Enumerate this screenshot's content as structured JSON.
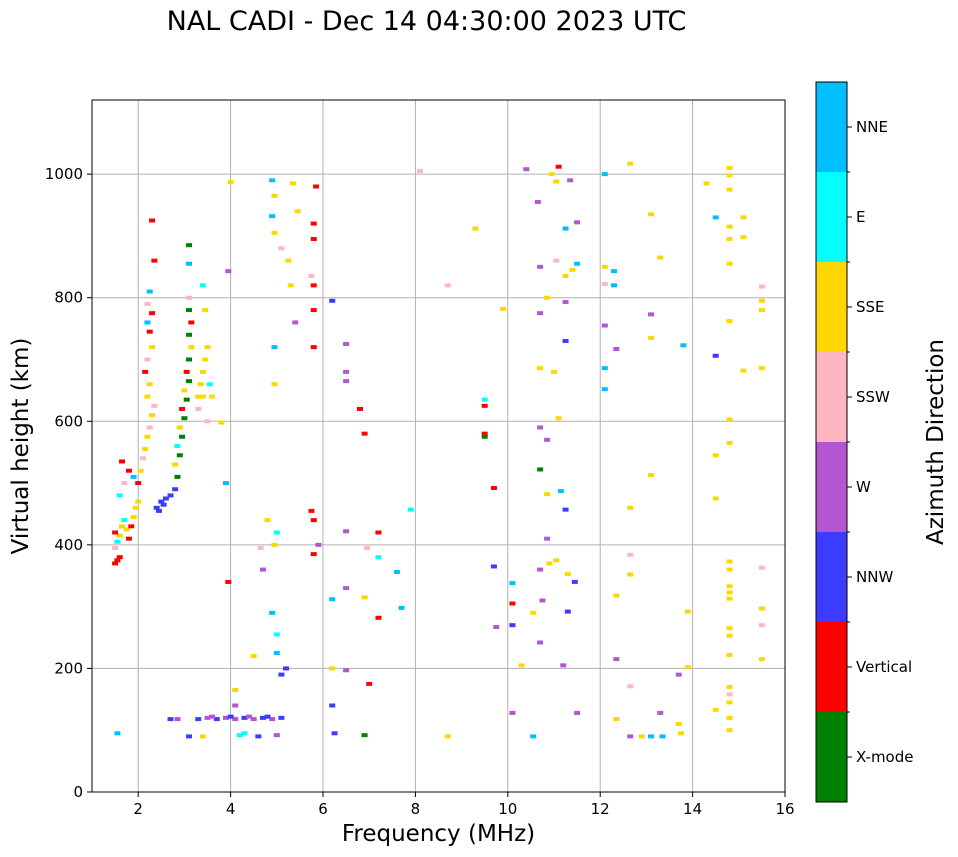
{
  "chart_data": {
    "type": "scatter",
    "title": "NAL CADI - Dec 14 04:30:00 2023 UTC",
    "xlabel": "Frequency (MHz)",
    "ylabel": "Virtual height (km)",
    "xlim": [
      1,
      16
    ],
    "ylim": [
      0,
      1120
    ],
    "xticks": [
      2,
      4,
      6,
      8,
      10,
      12,
      14,
      16
    ],
    "yticks": [
      0,
      200,
      400,
      600,
      800,
      1000
    ],
    "grid": true,
    "colorbar": {
      "label": "Azimuth Direction",
      "categories": [
        {
          "name": "X-mode",
          "color": "#008000"
        },
        {
          "name": "Vertical",
          "color": "#ff0000"
        },
        {
          "name": "NNW",
          "color": "#3c3cff"
        },
        {
          "name": "W",
          "color": "#b455d2"
        },
        {
          "name": "SSW",
          "color": "#ffb6c1"
        },
        {
          "name": "SSE",
          "color": "#ffd700"
        },
        {
          "name": "E",
          "color": "#00ffff"
        },
        {
          "name": "NNE",
          "color": "#00bfff"
        }
      ]
    },
    "points": [
      [
        1.5,
        370,
        "Vertical"
      ],
      [
        1.55,
        375,
        "Vertical"
      ],
      [
        1.6,
        380,
        "Vertical"
      ],
      [
        1.5,
        395,
        "SSW"
      ],
      [
        1.55,
        405,
        "E"
      ],
      [
        1.6,
        415,
        "SSE"
      ],
      [
        1.5,
        420,
        "Vertical"
      ],
      [
        1.65,
        430,
        "SSE"
      ],
      [
        1.7,
        440,
        "E"
      ],
      [
        1.75,
        425,
        "SSE"
      ],
      [
        1.8,
        410,
        "Vertical"
      ],
      [
        1.85,
        430,
        "Vertical"
      ],
      [
        1.9,
        445,
        "SSE"
      ],
      [
        1.95,
        460,
        "SSE"
      ],
      [
        2.0,
        470,
        "SSE"
      ],
      [
        1.6,
        480,
        "E"
      ],
      [
        1.7,
        500,
        "SSW"
      ],
      [
        1.8,
        520,
        "Vertical"
      ],
      [
        1.65,
        535,
        "Vertical"
      ],
      [
        1.9,
        510,
        "NNE"
      ],
      [
        2.0,
        500,
        "Vertical"
      ],
      [
        2.05,
        520,
        "SSE"
      ],
      [
        2.1,
        540,
        "SSW"
      ],
      [
        2.15,
        555,
        "SSE"
      ],
      [
        2.2,
        575,
        "SSE"
      ],
      [
        2.25,
        590,
        "SSW"
      ],
      [
        2.3,
        610,
        "SSE"
      ],
      [
        2.35,
        625,
        "SSW"
      ],
      [
        2.2,
        640,
        "SSE"
      ],
      [
        2.25,
        660,
        "SSE"
      ],
      [
        2.15,
        680,
        "Vertical"
      ],
      [
        2.2,
        700,
        "SSW"
      ],
      [
        2.3,
        720,
        "SSE"
      ],
      [
        2.25,
        745,
        "Vertical"
      ],
      [
        2.2,
        760,
        "NNE"
      ],
      [
        2.3,
        775,
        "Vertical"
      ],
      [
        2.2,
        790,
        "SSW"
      ],
      [
        2.25,
        810,
        "NNE"
      ],
      [
        2.35,
        860,
        "Vertical"
      ],
      [
        2.3,
        925,
        "Vertical"
      ],
      [
        2.4,
        460,
        "NNW"
      ],
      [
        2.5,
        470,
        "NNW"
      ],
      [
        2.6,
        475,
        "NNW"
      ],
      [
        2.7,
        480,
        "NNW"
      ],
      [
        2.45,
        455,
        "NNW"
      ],
      [
        2.55,
        465,
        "NNW"
      ],
      [
        2.8,
        490,
        "NNW"
      ],
      [
        2.85,
        510,
        "X-mode"
      ],
      [
        2.8,
        530,
        "SSE"
      ],
      [
        2.9,
        545,
        "X-mode"
      ],
      [
        2.85,
        560,
        "E"
      ],
      [
        2.95,
        575,
        "X-mode"
      ],
      [
        2.9,
        590,
        "SSE"
      ],
      [
        3.0,
        605,
        "X-mode"
      ],
      [
        2.95,
        620,
        "Vertical"
      ],
      [
        3.05,
        635,
        "X-mode"
      ],
      [
        3.0,
        650,
        "SSE"
      ],
      [
        3.1,
        665,
        "X-mode"
      ],
      [
        3.05,
        680,
        "Vertical"
      ],
      [
        3.1,
        700,
        "X-mode"
      ],
      [
        3.15,
        720,
        "SSE"
      ],
      [
        3.1,
        740,
        "X-mode"
      ],
      [
        3.15,
        760,
        "Vertical"
      ],
      [
        3.1,
        780,
        "X-mode"
      ],
      [
        3.1,
        800,
        "SSW"
      ],
      [
        3.1,
        855,
        "NNE"
      ],
      [
        3.1,
        885,
        "X-mode"
      ],
      [
        3.3,
        640,
        "SSE"
      ],
      [
        3.35,
        660,
        "SSE"
      ],
      [
        3.4,
        680,
        "SSE"
      ],
      [
        3.45,
        700,
        "SSE"
      ],
      [
        3.5,
        720,
        "SSE"
      ],
      [
        3.3,
        620,
        "SSW"
      ],
      [
        3.4,
        640,
        "SSE"
      ],
      [
        3.5,
        600,
        "SSW"
      ],
      [
        3.55,
        660,
        "E"
      ],
      [
        3.6,
        640,
        "SSE"
      ],
      [
        3.45,
        780,
        "SSE"
      ],
      [
        3.4,
        820,
        "E"
      ],
      [
        3.8,
        598,
        "SSE"
      ],
      [
        3.9,
        500,
        "NNE"
      ],
      [
        3.95,
        340,
        "Vertical"
      ],
      [
        4.0,
        987,
        "SSE"
      ],
      [
        3.95,
        843,
        "W"
      ],
      [
        3.3,
        118,
        "NNW"
      ],
      [
        3.5,
        120,
        "W"
      ],
      [
        3.7,
        118,
        "NNW"
      ],
      [
        3.9,
        120,
        "W"
      ],
      [
        4.1,
        118,
        "W"
      ],
      [
        4.3,
        120,
        "NNW"
      ],
      [
        4.5,
        118,
        "W"
      ],
      [
        4.7,
        120,
        "NNW"
      ],
      [
        4.9,
        118,
        "W"
      ],
      [
        5.1,
        120,
        "NNW"
      ],
      [
        3.6,
        122,
        "W"
      ],
      [
        4.0,
        122,
        "NNW"
      ],
      [
        4.4,
        122,
        "W"
      ],
      [
        4.8,
        122,
        "NNW"
      ],
      [
        2.7,
        118,
        "NNW"
      ],
      [
        2.85,
        118,
        "W"
      ],
      [
        4.2,
        92,
        "E"
      ],
      [
        4.3,
        95,
        "E"
      ],
      [
        4.6,
        90,
        "NNW"
      ],
      [
        5.0,
        92,
        "W"
      ],
      [
        3.1,
        90,
        "NNW"
      ],
      [
        3.4,
        90,
        "SSE"
      ],
      [
        1.55,
        95,
        "NNE"
      ],
      [
        4.1,
        165,
        "SSE"
      ],
      [
        4.1,
        140,
        "W"
      ],
      [
        4.5,
        220,
        "SSE"
      ],
      [
        4.65,
        395,
        "SSW"
      ],
      [
        4.7,
        360,
        "W"
      ],
      [
        4.8,
        440,
        "SSE"
      ],
      [
        4.9,
        990,
        "NNE"
      ],
      [
        4.95,
        965,
        "SSE"
      ],
      [
        4.9,
        932,
        "NNE"
      ],
      [
        4.95,
        905,
        "SSE"
      ],
      [
        5.1,
        880,
        "SSW"
      ],
      [
        4.95,
        720,
        "NNE"
      ],
      [
        4.95,
        660,
        "SSE"
      ],
      [
        5.0,
        420,
        "E"
      ],
      [
        4.95,
        400,
        "SSE"
      ],
      [
        4.9,
        290,
        "NNE"
      ],
      [
        5.0,
        255,
        "E"
      ],
      [
        5.0,
        225,
        "NNE"
      ],
      [
        5.2,
        200,
        "NNW"
      ],
      [
        5.1,
        190,
        "NNW"
      ],
      [
        5.25,
        860,
        "SSE"
      ],
      [
        5.3,
        820,
        "SSE"
      ],
      [
        5.4,
        760,
        "W"
      ],
      [
        5.35,
        985,
        "SSE"
      ],
      [
        5.45,
        940,
        "SSE"
      ],
      [
        5.85,
        980,
        "Vertical"
      ],
      [
        5.8,
        920,
        "Vertical"
      ],
      [
        5.8,
        895,
        "Vertical"
      ],
      [
        5.75,
        835,
        "SSW"
      ],
      [
        5.8,
        820,
        "Vertical"
      ],
      [
        5.8,
        780,
        "Vertical"
      ],
      [
        5.8,
        720,
        "Vertical"
      ],
      [
        5.75,
        455,
        "Vertical"
      ],
      [
        5.8,
        440,
        "Vertical"
      ],
      [
        5.8,
        385,
        "Vertical"
      ],
      [
        5.9,
        400,
        "W"
      ],
      [
        6.2,
        795,
        "NNW"
      ],
      [
        6.2,
        312,
        "NNE"
      ],
      [
        6.2,
        140,
        "NNW"
      ],
      [
        6.2,
        200,
        "SSE"
      ],
      [
        6.25,
        95,
        "NNW"
      ],
      [
        6.5,
        725,
        "W"
      ],
      [
        6.5,
        680,
        "W"
      ],
      [
        6.5,
        665,
        "W"
      ],
      [
        6.5,
        422,
        "W"
      ],
      [
        6.5,
        330,
        "W"
      ],
      [
        6.5,
        197,
        "W"
      ],
      [
        6.8,
        620,
        "Vertical"
      ],
      [
        6.9,
        580,
        "Vertical"
      ],
      [
        6.95,
        395,
        "SSW"
      ],
      [
        7.0,
        175,
        "Vertical"
      ],
      [
        6.9,
        315,
        "SSE"
      ],
      [
        6.9,
        92,
        "X-mode"
      ],
      [
        7.2,
        420,
        "Vertical"
      ],
      [
        7.2,
        380,
        "E"
      ],
      [
        7.2,
        282,
        "Vertical"
      ],
      [
        7.6,
        356,
        "NNE"
      ],
      [
        7.7,
        298,
        "NNE"
      ],
      [
        7.9,
        457,
        "E"
      ],
      [
        8.1,
        1005,
        "SSW"
      ],
      [
        8.7,
        820,
        "SSW"
      ],
      [
        8.7,
        90,
        "SSE"
      ],
      [
        9.3,
        912,
        "SSE"
      ],
      [
        9.5,
        635,
        "E"
      ],
      [
        9.5,
        625,
        "Vertical"
      ],
      [
        9.5,
        580,
        "Vertical"
      ],
      [
        9.5,
        575,
        "X-mode"
      ],
      [
        9.7,
        492,
        "Vertical"
      ],
      [
        9.7,
        365,
        "NNW"
      ],
      [
        9.75,
        267,
        "W"
      ],
      [
        9.9,
        782,
        "SSE"
      ],
      [
        10.1,
        338,
        "NNE"
      ],
      [
        10.1,
        305,
        "Vertical"
      ],
      [
        10.1,
        270,
        "NNW"
      ],
      [
        10.1,
        128,
        "W"
      ],
      [
        10.3,
        205,
        "SSE"
      ],
      [
        10.4,
        1008,
        "W"
      ],
      [
        10.55,
        90,
        "NNE"
      ],
      [
        10.55,
        290,
        "SSE"
      ],
      [
        10.65,
        955,
        "W"
      ],
      [
        10.7,
        850,
        "W"
      ],
      [
        10.7,
        775,
        "W"
      ],
      [
        10.7,
        686,
        "SSE"
      ],
      [
        10.7,
        590,
        "W"
      ],
      [
        10.7,
        522,
        "X-mode"
      ],
      [
        10.7,
        360,
        "W"
      ],
      [
        10.75,
        310,
        "W"
      ],
      [
        10.7,
        242,
        "W"
      ],
      [
        10.85,
        800,
        "SSE"
      ],
      [
        10.85,
        570,
        "W"
      ],
      [
        10.85,
        482,
        "SSE"
      ],
      [
        10.85,
        410,
        "W"
      ],
      [
        10.9,
        370,
        "SSE"
      ],
      [
        10.95,
        1000,
        "SSE"
      ],
      [
        11.05,
        988,
        "SSE"
      ],
      [
        11.1,
        1012,
        "Vertical"
      ],
      [
        11.05,
        860,
        "SSW"
      ],
      [
        11.0,
        680,
        "SSE"
      ],
      [
        11.05,
        375,
        "SSE"
      ],
      [
        11.1,
        605,
        "SSE"
      ],
      [
        11.15,
        487,
        "NNE"
      ],
      [
        11.2,
        205,
        "W"
      ],
      [
        11.25,
        912,
        "NNE"
      ],
      [
        11.25,
        835,
        "SSE"
      ],
      [
        11.25,
        793,
        "W"
      ],
      [
        11.25,
        730,
        "NNW"
      ],
      [
        11.25,
        457,
        "NNW"
      ],
      [
        11.3,
        353,
        "SSE"
      ],
      [
        11.3,
        292,
        "NNW"
      ],
      [
        11.35,
        990,
        "W"
      ],
      [
        11.4,
        845,
        "SSE"
      ],
      [
        11.45,
        340,
        "NNW"
      ],
      [
        11.5,
        922,
        "W"
      ],
      [
        11.5,
        855,
        "NNE"
      ],
      [
        11.5,
        128,
        "W"
      ],
      [
        12.1,
        1000,
        "NNE"
      ],
      [
        12.1,
        850,
        "SSE"
      ],
      [
        12.1,
        822,
        "SSW"
      ],
      [
        12.1,
        755,
        "W"
      ],
      [
        12.1,
        686,
        "NNE"
      ],
      [
        12.1,
        652,
        "NNE"
      ],
      [
        12.3,
        843,
        "NNE"
      ],
      [
        12.3,
        820,
        "NNE"
      ],
      [
        12.35,
        717,
        "W"
      ],
      [
        12.35,
        318,
        "SSE"
      ],
      [
        12.35,
        215,
        "W"
      ],
      [
        12.35,
        118,
        "SSE"
      ],
      [
        12.65,
        1017,
        "SSE"
      ],
      [
        12.65,
        460,
        "SSE"
      ],
      [
        12.65,
        384,
        "SSW"
      ],
      [
        12.65,
        352,
        "SSE"
      ],
      [
        12.65,
        171,
        "SSW"
      ],
      [
        12.65,
        90,
        "W"
      ],
      [
        12.9,
        90,
        "SSE"
      ],
      [
        13.1,
        935,
        "SSE"
      ],
      [
        13.1,
        773,
        "W"
      ],
      [
        13.1,
        735,
        "SSE"
      ],
      [
        13.1,
        513,
        "SSE"
      ],
      [
        13.3,
        865,
        "SSE"
      ],
      [
        13.3,
        128,
        "W"
      ],
      [
        13.1,
        90,
        "NNE"
      ],
      [
        13.35,
        90,
        "NNE"
      ],
      [
        13.8,
        723,
        "NNE"
      ],
      [
        13.7,
        110,
        "SSE"
      ],
      [
        13.7,
        190,
        "W"
      ],
      [
        13.75,
        95,
        "SSE"
      ],
      [
        13.9,
        292,
        "SSE"
      ],
      [
        13.9,
        202,
        "SSE"
      ],
      [
        14.3,
        985,
        "SSE"
      ],
      [
        14.5,
        930,
        "NNE"
      ],
      [
        14.5,
        706,
        "NNW"
      ],
      [
        14.5,
        545,
        "SSE"
      ],
      [
        14.5,
        475,
        "SSE"
      ],
      [
        14.5,
        133,
        "SSE"
      ],
      [
        14.8,
        1010,
        "SSE"
      ],
      [
        14.8,
        998,
        "SSE"
      ],
      [
        14.8,
        975,
        "SSE"
      ],
      [
        14.8,
        915,
        "SSE"
      ],
      [
        14.8,
        895,
        "SSE"
      ],
      [
        14.8,
        855,
        "SSE"
      ],
      [
        14.8,
        762,
        "SSE"
      ],
      [
        14.8,
        603,
        "SSE"
      ],
      [
        14.8,
        565,
        "SSE"
      ],
      [
        14.8,
        373,
        "SSE"
      ],
      [
        14.8,
        360,
        "SSE"
      ],
      [
        14.8,
        333,
        "SSE"
      ],
      [
        14.8,
        323,
        "SSE"
      ],
      [
        14.8,
        313,
        "SSE"
      ],
      [
        14.8,
        265,
        "SSE"
      ],
      [
        14.8,
        253,
        "SSE"
      ],
      [
        14.8,
        222,
        "SSE"
      ],
      [
        14.8,
        170,
        "SSE"
      ],
      [
        14.8,
        158,
        "SSW"
      ],
      [
        14.8,
        145,
        "SSE"
      ],
      [
        14.8,
        120,
        "SSE"
      ],
      [
        14.8,
        100,
        "SSE"
      ],
      [
        15.1,
        930,
        "SSE"
      ],
      [
        15.1,
        898,
        "SSE"
      ],
      [
        15.1,
        682,
        "SSE"
      ],
      [
        15.5,
        818,
        "SSW"
      ],
      [
        15.5,
        795,
        "SSE"
      ],
      [
        15.5,
        780,
        "SSE"
      ],
      [
        15.5,
        686,
        "SSE"
      ],
      [
        15.5,
        363,
        "SSW"
      ],
      [
        15.5,
        297,
        "SSE"
      ],
      [
        15.5,
        270,
        "SSW"
      ],
      [
        15.5,
        215,
        "SSE"
      ]
    ]
  }
}
